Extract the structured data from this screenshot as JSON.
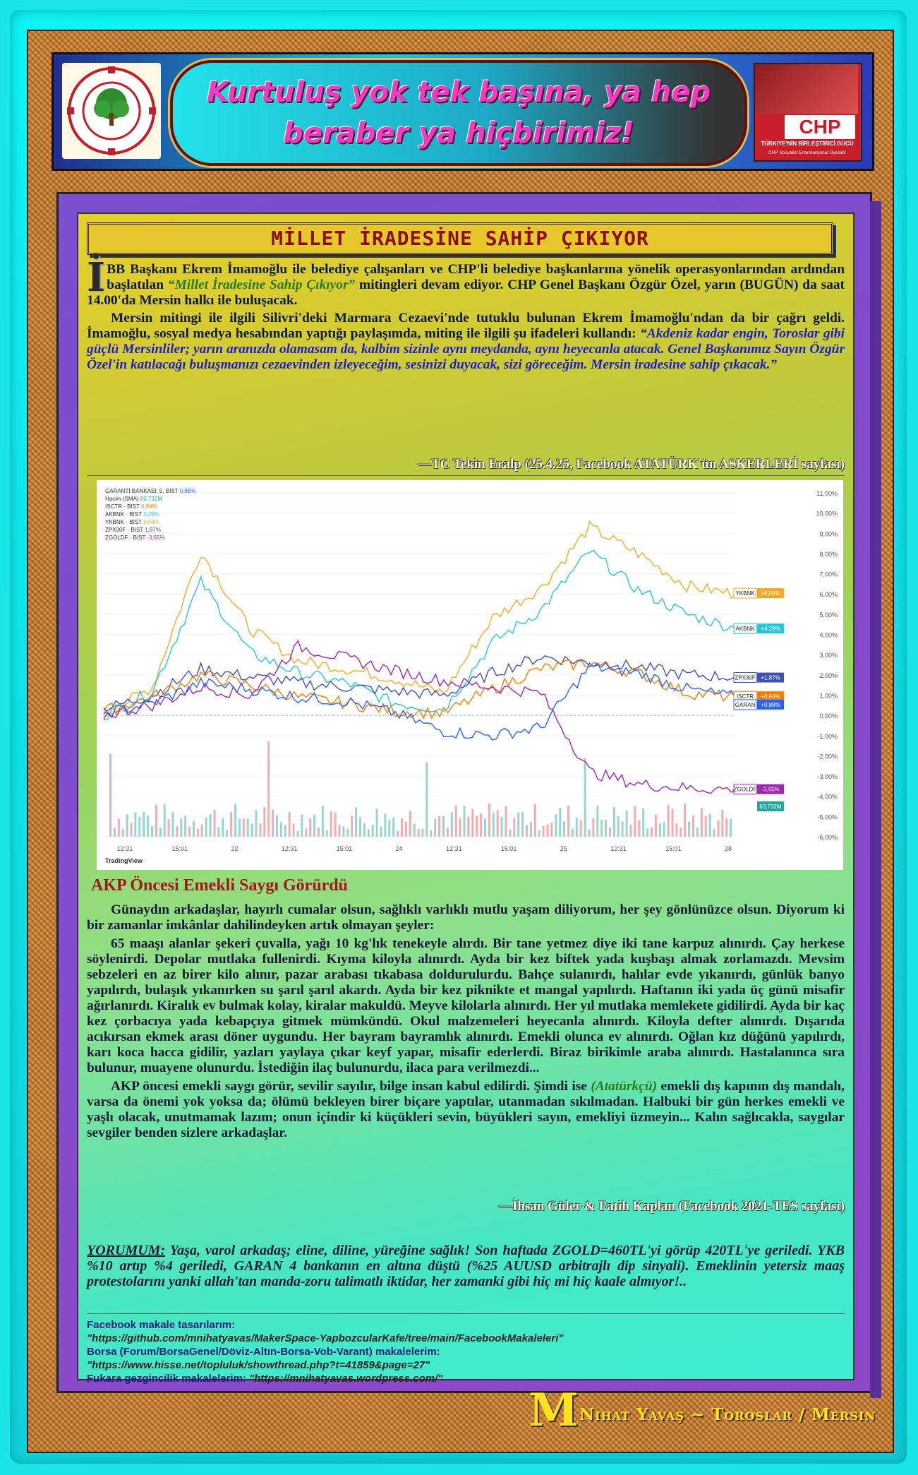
{
  "header": {
    "left_logo_text": "TÜM EMEKLİLER SENDİKASI",
    "left_logo_year": "2021",
    "banner_line1": "Kurtuluş yok tek başına, ya hep",
    "banner_line2": "beraber ya hiçbirimiz!",
    "right_logo_chp": "CHP",
    "right_logo_line": "TÜRKİYE'NİN BİRLEŞTİRİCİ GÜCÜ",
    "right_logo_foot": "CHP Sosyalist Enternasyonal Üyesidir"
  },
  "article1": {
    "title": "MİLLET İRADESİNE SAHİP ÇIKIYOR",
    "dropcap": "İ",
    "p1_a": "BB Başkanı Ekrem İmamoğlu ile belediye çalışanları ve CHP'li belediye başkanlarına yönelik operasyonlarından ardından başlatılan ",
    "p1_quote": "“Millet İradesine Sahip Çıkıyor”",
    "p1_b": " mitingleri devam ediyor. CHP Genel Başkanı Özgür Özel, yarın (BUGÜN) da saat 14.00'da Mersin halkı ile buluşacak.",
    "p2_a": "Mersin mitingi ile ilgili Silivri'deki Marmara Cezaevi'nde tutuklu bulunan Ekrem İmamoğlu'ndan da bir çağrı geldi. İmamoğlu, sosyal medya hesabından yaptığı paylaşımda, miting ile ilgili şu ifadeleri kullandı: ",
    "p2_quote": "“Akdeniz kadar engin, Toroslar gibi güçlü Mersinliler; yarın aranızda olamasam da, kalbim sizinle aynı meydanda, aynı heyecanla atacak. Genel Başkanımız Sayın Özgür Özel'in katılacağı buluşmanızı cezaevinden izleyeceğim, sesinizi duyacak, sizi göreceğim. Mersin iradesine sahip çıkacak.”",
    "signature": "—TC Tekin Eralp (25.4.25, Facebook ATATÜRK'ün ASKERLERİ sayfası)"
  },
  "chart_data": {
    "type": "line",
    "x_ticks": [
      "12:31",
      "15:01",
      "22",
      "12:31",
      "15:01",
      "24",
      "12:31",
      "15:01",
      "25",
      "12:31",
      "15:01",
      "28"
    ],
    "y_ticks": [
      "11,00%",
      "10,00%",
      "9,00%",
      "8,00%",
      "7,00%",
      "6,00%",
      "5,00%",
      "4,00%",
      "3,00%",
      "2,00%",
      "1,00%",
      "0,00%",
      "-1,00%",
      "-2,00%",
      "-3,00%",
      "-4,00%",
      "-5,00%",
      "-6,00%"
    ],
    "ylim": [
      -6,
      11
    ],
    "legend": [
      {
        "name": "GARANTİ BANKASI, 5, BIST",
        "value": "0,88%",
        "color": "#2962ff"
      },
      {
        "name": "Hacim (SMA)",
        "value": "83,732M",
        "color": "#26a69a"
      },
      {
        "name": "ISCTR · BIST",
        "value": "0,94%",
        "color": "#f57c00"
      },
      {
        "name": "AKBNK · BIST",
        "value": "4,29%",
        "color": "#26c6da"
      },
      {
        "name": "YKBNK · BIST",
        "value": "6,04%",
        "color": "#f9a825"
      },
      {
        "name": "ZPX30F · BIST",
        "value": "1,87%",
        "color": "#3f51b5"
      },
      {
        "name": "ZGOLDF · BIST",
        "value": "-3,65%",
        "color": "#9c27b0"
      }
    ],
    "end_labels": [
      {
        "tag": "YKBNK",
        "value": "+6,04%",
        "color": "#f9a825"
      },
      {
        "tag": "AKBNK",
        "value": "+4,29%",
        "color": "#26c6da"
      },
      {
        "tag": "ZPX30F",
        "value": "+1,87%",
        "color": "#3f51b5"
      },
      {
        "tag": "ISCTR",
        "value": "+0,94%",
        "color": "#f57c00"
      },
      {
        "tag": "GARAN",
        "value": "+0,88%",
        "color": "#2962ff"
      },
      {
        "tag": "ZGOLDF",
        "value": "-3,65%",
        "color": "#9c27b0"
      },
      {
        "tag": "",
        "value": "83,732M",
        "color": "#26a69a"
      }
    ],
    "series": [
      {
        "name": "YKBNK",
        "color": "#f9a825",
        "values": [
          0,
          1.4,
          8.1,
          4.3,
          2.7,
          2.3,
          1.8,
          1.1,
          4.8,
          6.3,
          9.3,
          8.0,
          6.4,
          6.0
        ]
      },
      {
        "name": "AKBNK",
        "color": "#26c6da",
        "values": [
          0,
          1.2,
          6.6,
          3.1,
          2.1,
          1.6,
          0.6,
          0.3,
          3.6,
          5.2,
          8.1,
          6.2,
          5.0,
          4.3
        ]
      },
      {
        "name": "ZPX30F",
        "color": "#3f51b5",
        "values": [
          0.3,
          1.0,
          2.3,
          1.9,
          1.6,
          1.4,
          1.2,
          1.0,
          2.1,
          2.9,
          2.6,
          2.4,
          2.0,
          1.9
        ]
      },
      {
        "name": "ISCTR",
        "color": "#f57c00",
        "values": [
          0.2,
          0.9,
          2.0,
          1.5,
          0.9,
          0.6,
          0.2,
          0.1,
          1.3,
          2.3,
          2.6,
          2.1,
          1.1,
          0.9
        ]
      },
      {
        "name": "GARAN",
        "color": "#2962ff",
        "values": [
          0.1,
          0.6,
          1.6,
          1.3,
          0.9,
          0.7,
          0.1,
          -0.8,
          -1.0,
          -0.6,
          2.4,
          2.1,
          1.3,
          0.9
        ]
      },
      {
        "name": "ZGOLDF",
        "color": "#9c27b0",
        "values": [
          0,
          0.5,
          1.4,
          1.0,
          3.4,
          2.8,
          2.2,
          1.7,
          1.4,
          1.1,
          -2.8,
          -3.4,
          -3.6,
          -3.65
        ]
      }
    ],
    "watermark": "TradingView"
  },
  "article2": {
    "heading": "AKP Öncesi Emekli Saygı Görürdü",
    "p1": "Günaydın arkadaşlar, hayırlı cumalar olsun, sağlıklı varlıklı mutlu yaşam diliyorum, her şey gönlünüzce olsun. Diyorum ki bir zamanlar imkânlar dahilindeyken artık olmayan şeyler:",
    "p2": "65 maaşı alanlar şekeri çuvalla, yağı 10 kg'lık tenekeyle alırdı. Bir tane yetmez diye iki tane karpuz alınırdı. Çay herkese söylenirdi. Depolar mutlaka fullenirdi. Kıyma kiloyla alınırdı. Ayda bir kez biftek yada kuşbaşı almak zorlamazdı. Mevsim sebzeleri en az birer kilo alınır, pazar arabası tıkabasa doldurulurdu. Bahçe sulanırdı, halılar evde yıkanırdı, günlük banyo yapılırdı, bulaşık yıkanırken su şarıl şarıl akardı. Ayda bir kez piknikte et mangal yapılırdı. Haftanın iki yada üç günü misafir ağırlanırdı. Kiralık ev bulmak kolay, kiralar makuldü. Meyve kilolarla alınırdı. Her yıl mutlaka memlekete gidilirdi. Ayda bir kaç kez çorbacıya yada kebapçıya gitmek mümkündü. Okul malzemeleri heyecanla alınırdı. Kiloyla defter alınırdı. Dışarıda acıkırsan ekmek arası döner uygundu. Her bayram bayramlık alınırdı. Emekli olunca ev alınırdı. Oğlan kız düğünü yapılırdı, karı koca hacca gidilir, yazları yaylaya çıkar keyf yapar, misafir ederlerdi. Biraz birikimle araba alınırdı. Hastalanınca sıra bulunur, muayene olunurdu. İstediğin ilaç bulunurdu, ilaca para verilmezdi...",
    "p3_a": "AKP öncesi emekli saygı görür, sevilir sayılır, bilge insan kabul edilirdi. Şimdi ise ",
    "p3_green": "(Atatürkçü)",
    "p3_b": " emekli dış kapının dış mandalı, varsa da önemi yok yoksa da; ölümü bekleyen birer biçare yaptılar, utanmadan sıkılmadan. Halbuki bir gün herkes emekli ve yaşlı olacak, unutmamak lazım; onun içindir ki küçükleri sevin, büyükleri sayın, emekliyi üzmeyin... Kalın sağlıcakla, saygılar sevgiler benden sizlere arkadaşlar.",
    "signature": "—İhsan Güler & Fatih Kaplan (Facebook 2021-TES sayfası)"
  },
  "comment": {
    "label": "YORUMUM:",
    "text": " Yaşa, varol arkadaş; eline, diline, yüreğine sağlık! Son haftada ZGOLD=460TL'yi görüp 420TL'ye geriledi. YKB %10 artıp %4 geriledi, GARAN 4 bankanın en altına düştü (%25 AUUSD arbitrajlı dip sinyali). Emeklinin yetersiz maaş protestolarını yanki allah'tan manda-zoru talimatlı iktidar, her zamanki gibi hiç mi hiç kaale almıyor!.."
  },
  "links": {
    "l1_label": "Facebook makale tasarılarım:",
    "l1_url": "\"https://github.com/mnihatyavas/MakerSpace-YapbozcularKafe/tree/main/FacebookMakaleleri\"",
    "l2_label": "Borsa (Forum/BorsaGenel/Döviz-Altın-Borsa-Vob-Varant) makalelerim:",
    "l2_url": "\"https://www.hisse.net/topluluk/showthread.php?t=41859&page=27\"",
    "l3_label": "Fukara gezgincilik makalelerim: ",
    "l3_url": "\"https://mnihatyavas.wordpress.com/\""
  },
  "footer": {
    "initial": "M",
    "text": "Nihat Yavaş ~ Toroslar / Mersin"
  }
}
